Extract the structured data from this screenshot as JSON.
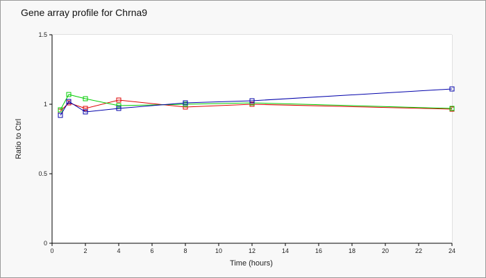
{
  "chart_data": {
    "type": "line",
    "title": "Gene array profile for Chrna9",
    "xlabel": "Time (hours)",
    "ylabel": "Ratio to Ctrl",
    "xlim": [
      0,
      24
    ],
    "ylim": [
      0,
      1.5
    ],
    "xticks": [
      0,
      2,
      4,
      6,
      8,
      10,
      12,
      14,
      16,
      18,
      20,
      22,
      24
    ],
    "yticks": [
      0,
      0.5,
      1,
      1.5
    ],
    "ytick_labels": [
      "0",
      "0.5",
      "1",
      "1.5"
    ],
    "grid": true,
    "legend": "none",
    "x": [
      0.5,
      1,
      2,
      4,
      8,
      12,
      24
    ],
    "series": [
      {
        "color": "#dd0000",
        "values": [
          0.95,
          1.01,
          0.97,
          1.03,
          0.98,
          1.0,
          0.965
        ]
      },
      {
        "color": "#00cc00",
        "values": [
          0.96,
          1.07,
          1.04,
          0.99,
          1.0,
          1.01,
          0.97
        ]
      },
      {
        "color": "#0000aa",
        "values": [
          0.92,
          1.02,
          0.945,
          0.97,
          1.01,
          1.025,
          1.11
        ]
      }
    ]
  }
}
